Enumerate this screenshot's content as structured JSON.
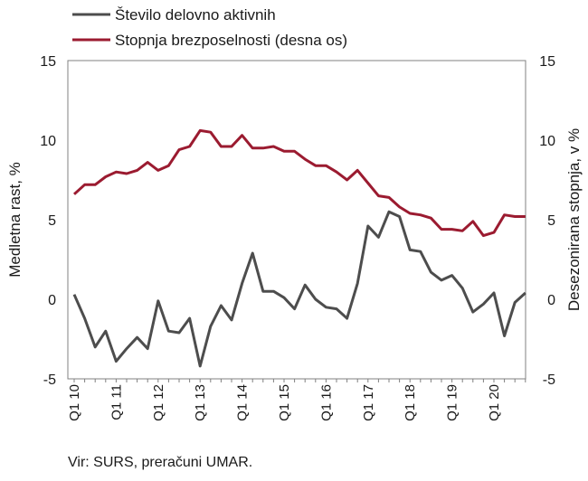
{
  "chart_data": {
    "type": "line",
    "title": "",
    "ylabel_left": "Medletna rast, %",
    "ylabel_right": "Desezonirana stopnja, v %",
    "ylim_left": [
      -5,
      15
    ],
    "ylim_right": [
      -5,
      15
    ],
    "yticks": [
      "15",
      "10",
      "5",
      "0",
      "-5"
    ],
    "grid": false,
    "legend_position": "top-left",
    "x_tick_labels": [
      "Q1 10",
      "Q1 11",
      "Q1 12",
      "Q1 13",
      "Q1 14",
      "Q1 15",
      "Q1 16",
      "Q1 17",
      "Q1 18",
      "Q1 19",
      "Q1 20"
    ],
    "x": [
      "Q1 10",
      "Q2 10",
      "Q3 10",
      "Q4 10",
      "Q1 11",
      "Q2 11",
      "Q3 11",
      "Q4 11",
      "Q1 12",
      "Q2 12",
      "Q3 12",
      "Q4 12",
      "Q1 13",
      "Q2 13",
      "Q3 13",
      "Q4 13",
      "Q1 14",
      "Q2 14",
      "Q3 14",
      "Q4 14",
      "Q1 15",
      "Q2 15",
      "Q3 15",
      "Q4 15",
      "Q1 16",
      "Q2 16",
      "Q3 16",
      "Q4 16",
      "Q1 17",
      "Q2 17",
      "Q3 17",
      "Q4 17",
      "Q1 18",
      "Q2 18",
      "Q3 18",
      "Q4 18",
      "Q1 19",
      "Q2 19",
      "Q3 19",
      "Q4 19",
      "Q1 20",
      "Q2 20",
      "Q3 20",
      "Q4 20"
    ],
    "series": [
      {
        "name": "Število delovno aktivnih",
        "axis": "left",
        "color": "#4d4d4d",
        "values": [
          0.3,
          -1.2,
          -3.0,
          -2.0,
          -3.9,
          -3.1,
          -2.4,
          -3.1,
          -0.1,
          -2.0,
          -2.1,
          -1.2,
          -4.2,
          -1.7,
          -0.4,
          -1.3,
          1.0,
          2.9,
          0.5,
          0.5,
          0.1,
          -0.6,
          0.9,
          0.0,
          -0.5,
          -0.6,
          -1.2,
          1.0,
          4.6,
          3.9,
          5.5,
          5.2,
          3.1,
          3.0,
          1.7,
          1.2,
          1.5,
          0.7,
          -0.8,
          -0.3,
          0.4,
          -2.3,
          -0.2,
          0.4
        ]
      },
      {
        "name": "Stopnja brezposelnosti (desna os)",
        "axis": "right",
        "color": "#9b1b30",
        "values": [
          6.6,
          7.2,
          7.2,
          7.7,
          8.0,
          7.9,
          8.1,
          8.6,
          8.1,
          8.4,
          9.4,
          9.6,
          10.6,
          10.5,
          9.6,
          9.6,
          10.3,
          9.5,
          9.5,
          9.6,
          9.3,
          9.3,
          8.8,
          8.4,
          8.4,
          8.0,
          7.5,
          8.1,
          7.3,
          6.5,
          6.4,
          5.8,
          5.4,
          5.3,
          5.1,
          4.4,
          4.4,
          4.3,
          4.9,
          4.0,
          4.2,
          5.3,
          5.2,
          5.2
        ]
      }
    ]
  },
  "source": "Vir: SURS, preračuni UMAR."
}
